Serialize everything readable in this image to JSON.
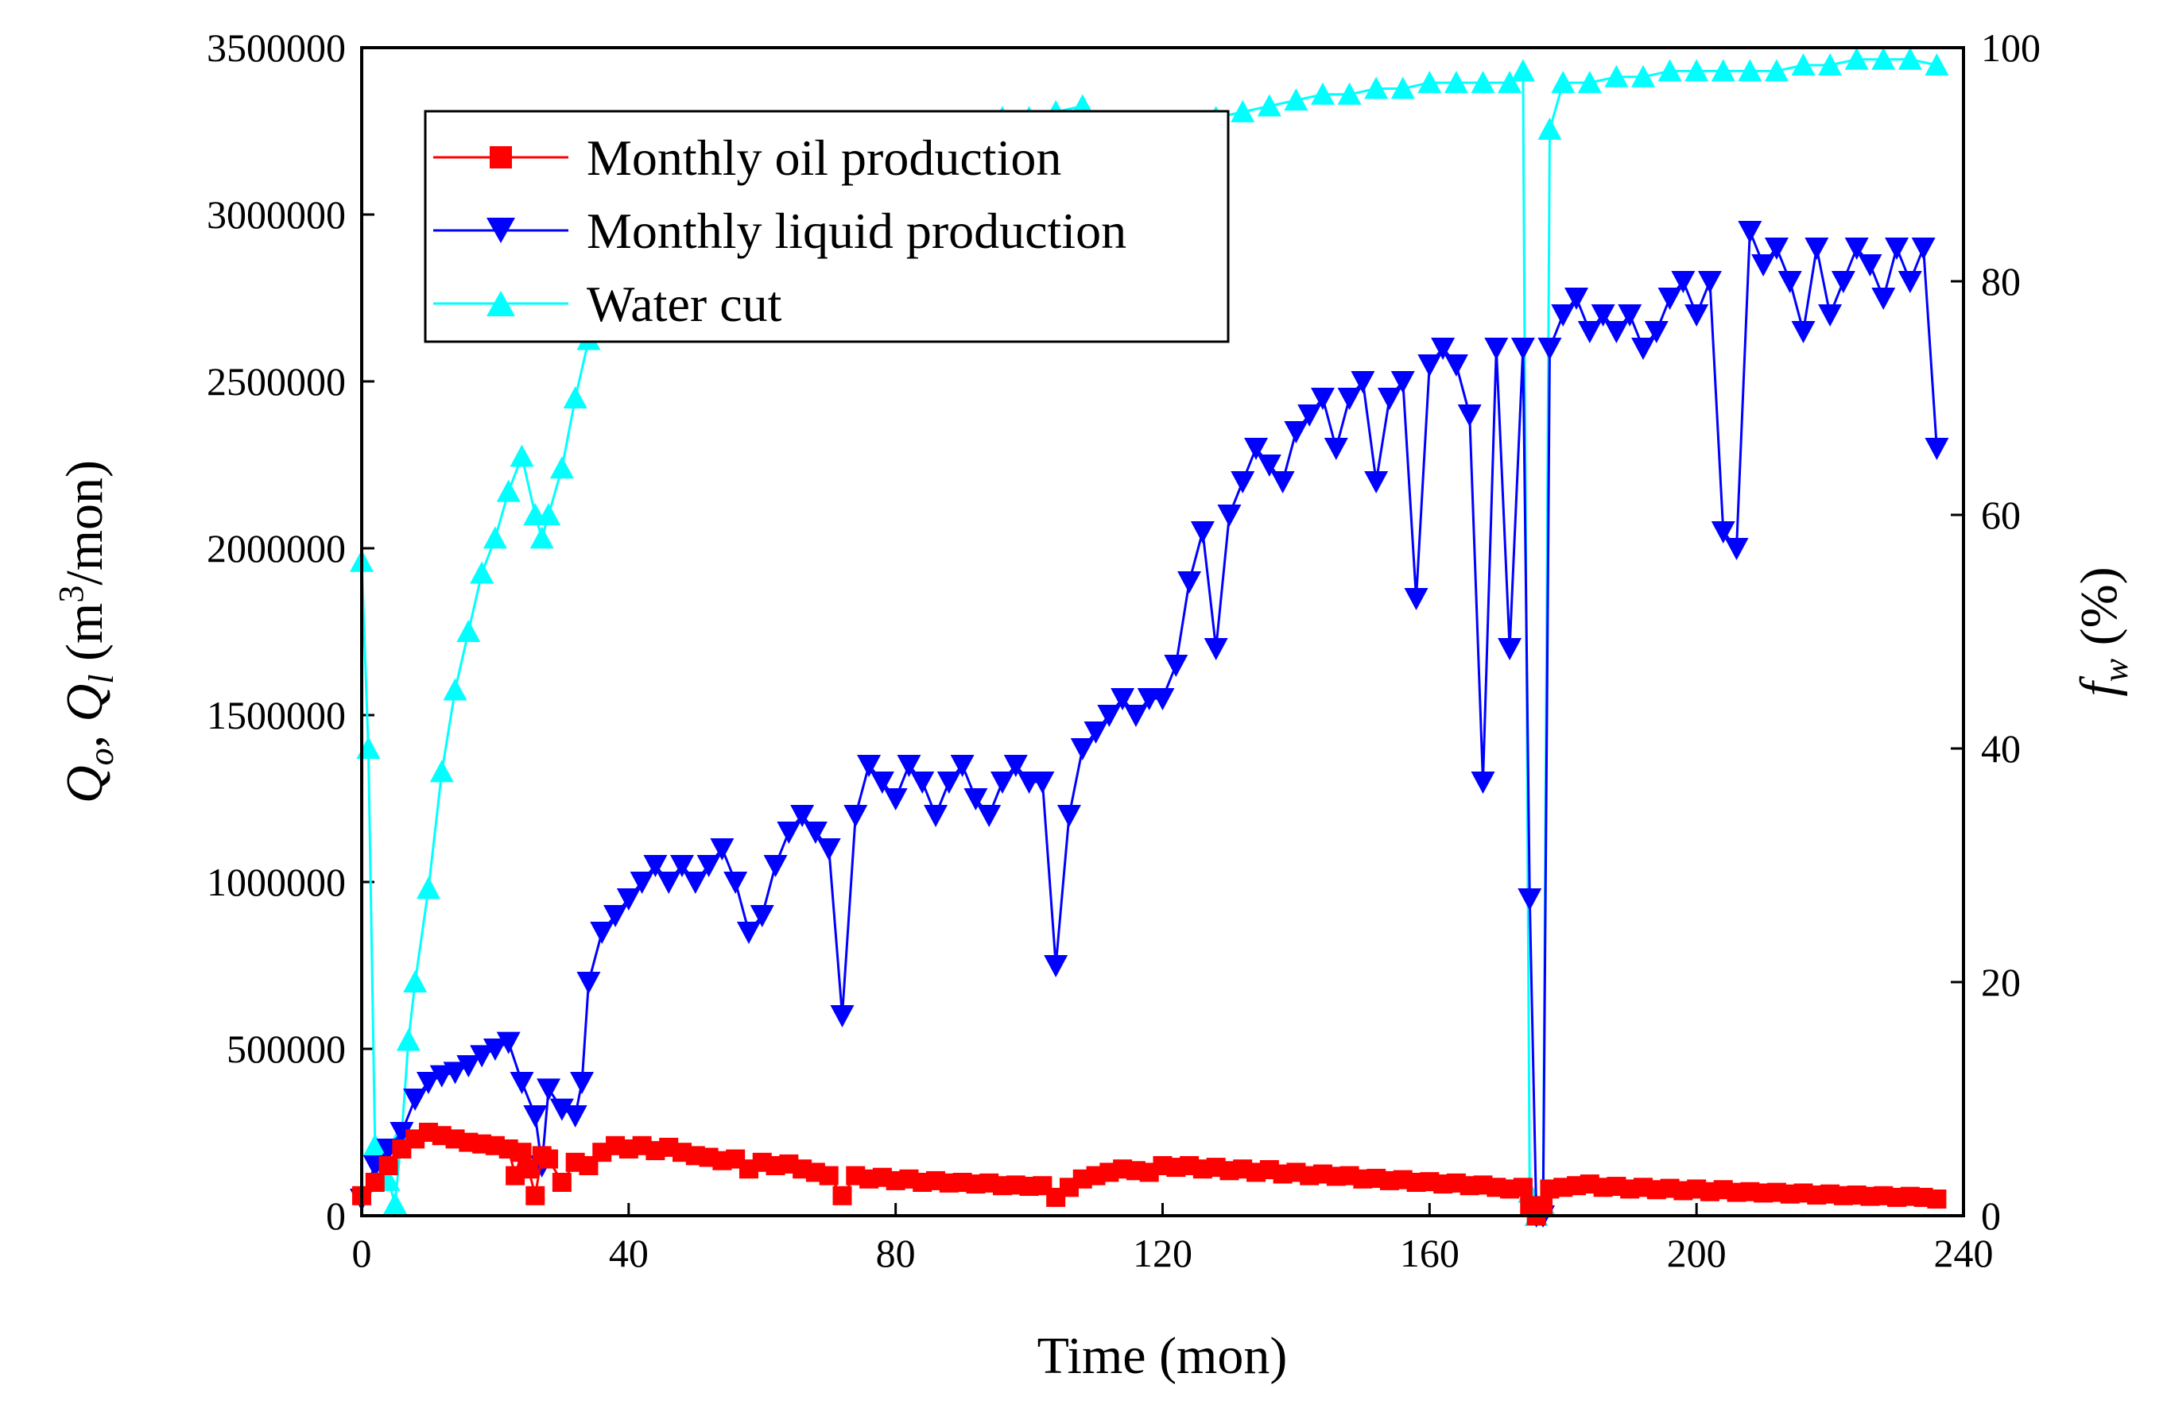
{
  "chart_data": {
    "type": "line",
    "xlabel": "Time (mon)",
    "ylabel_left_parts": [
      "Q",
      "o",
      ", ",
      "Q",
      "l",
      " (m",
      "3",
      "/mon)"
    ],
    "ylabel_right_parts": [
      "f",
      "w",
      " (%)"
    ],
    "xlim": [
      0,
      240
    ],
    "ylim_left": [
      0,
      3500000
    ],
    "ylim_right": [
      0,
      100
    ],
    "x_ticks": [
      "0",
      "40",
      "80",
      "120",
      "160",
      "200",
      "240"
    ],
    "y_left_ticks": [
      "0",
      "500000",
      "1000000",
      "1500000",
      "2000000",
      "2500000",
      "3000000",
      "3500000"
    ],
    "y_right_ticks": [
      "0",
      "20",
      "40",
      "60",
      "80",
      "100"
    ],
    "legend_position": "top-left",
    "colors": {
      "oil": "#ff0000",
      "liquid": "#0000ff",
      "water": "#00ffff"
    },
    "series": [
      {
        "name": "Monthly oil production",
        "axis": "left",
        "marker": "square",
        "color": "#ff0000",
        "x": [
          0,
          2,
          4,
          6,
          8,
          10,
          12,
          14,
          16,
          18,
          20,
          22,
          23,
          24,
          25,
          26,
          27,
          28,
          30,
          32,
          34,
          36,
          38,
          40,
          42,
          44,
          46,
          48,
          50,
          52,
          54,
          56,
          58,
          60,
          62,
          64,
          66,
          68,
          70,
          72,
          74,
          76,
          78,
          80,
          82,
          84,
          86,
          88,
          90,
          92,
          94,
          96,
          98,
          100,
          102,
          104,
          106,
          108,
          110,
          112,
          114,
          116,
          118,
          120,
          122,
          124,
          126,
          128,
          130,
          132,
          134,
          136,
          138,
          140,
          142,
          144,
          146,
          148,
          150,
          152,
          154,
          156,
          158,
          160,
          162,
          164,
          166,
          168,
          170,
          172,
          174,
          175,
          176,
          177,
          178,
          180,
          182,
          184,
          186,
          188,
          190,
          192,
          194,
          196,
          198,
          200,
          202,
          204,
          206,
          208,
          210,
          212,
          214,
          216,
          218,
          220,
          222,
          224,
          226,
          228,
          230,
          232,
          234,
          236
        ],
        "values": [
          60000,
          100000,
          150000,
          200000,
          230000,
          250000,
          240000,
          230000,
          220000,
          215000,
          210000,
          200000,
          120000,
          190000,
          140000,
          60000,
          180000,
          170000,
          100000,
          160000,
          150000,
          190000,
          210000,
          200000,
          210000,
          195000,
          205000,
          190000,
          180000,
          175000,
          165000,
          170000,
          140000,
          160000,
          150000,
          155000,
          140000,
          130000,
          120000,
          60000,
          120000,
          110000,
          115000,
          105000,
          110000,
          100000,
          105000,
          98000,
          100000,
          95000,
          98000,
          90000,
          92000,
          88000,
          90000,
          55000,
          85000,
          110000,
          120000,
          130000,
          140000,
          135000,
          130000,
          150000,
          145000,
          150000,
          140000,
          145000,
          135000,
          140000,
          130000,
          138000,
          125000,
          130000,
          120000,
          125000,
          118000,
          120000,
          110000,
          112000,
          105000,
          108000,
          100000,
          102000,
          95000,
          98000,
          90000,
          92000,
          85000,
          80000,
          85000,
          30000,
          0,
          30000,
          80000,
          85000,
          90000,
          95000,
          85000,
          88000,
          80000,
          85000,
          78000,
          82000,
          75000,
          80000,
          72000,
          78000,
          70000,
          72000,
          68000,
          70000,
          65000,
          68000,
          62000,
          65000,
          60000,
          62000,
          58000,
          60000,
          55000,
          58000,
          55000,
          50000
        ]
      },
      {
        "name": "Monthly liquid production",
        "axis": "left",
        "marker": "triangle-down",
        "color": "#0000ff",
        "x": [
          0,
          2,
          4,
          6,
          8,
          10,
          12,
          14,
          16,
          18,
          20,
          22,
          24,
          26,
          27,
          28,
          30,
          32,
          33,
          34,
          36,
          38,
          40,
          42,
          44,
          46,
          48,
          50,
          52,
          54,
          56,
          58,
          60,
          62,
          64,
          66,
          68,
          70,
          72,
          74,
          76,
          78,
          80,
          82,
          84,
          86,
          88,
          90,
          92,
          94,
          96,
          98,
          100,
          102,
          104,
          106,
          108,
          110,
          112,
          114,
          116,
          118,
          120,
          122,
          124,
          126,
          128,
          130,
          132,
          134,
          136,
          138,
          140,
          142,
          144,
          146,
          148,
          150,
          152,
          154,
          156,
          158,
          160,
          162,
          164,
          166,
          168,
          170,
          172,
          174,
          175,
          176,
          177,
          178,
          180,
          182,
          184,
          186,
          188,
          190,
          192,
          194,
          196,
          198,
          200,
          202,
          204,
          206,
          208,
          210,
          212,
          214,
          216,
          218,
          220,
          222,
          224,
          226,
          228,
          230,
          232,
          234,
          236
        ],
        "values": [
          50000,
          150000,
          200000,
          250000,
          350000,
          400000,
          420000,
          430000,
          450000,
          480000,
          500000,
          520000,
          400000,
          300000,
          150000,
          380000,
          320000,
          300000,
          400000,
          700000,
          850000,
          900000,
          950000,
          1000000,
          1050000,
          1000000,
          1050000,
          1000000,
          1050000,
          1100000,
          1000000,
          850000,
          900000,
          1050000,
          1150000,
          1200000,
          1150000,
          1100000,
          600000,
          1200000,
          1350000,
          1300000,
          1250000,
          1350000,
          1300000,
          1200000,
          1300000,
          1350000,
          1250000,
          1200000,
          1300000,
          1350000,
          1300000,
          1300000,
          750000,
          1200000,
          1400000,
          1450000,
          1500000,
          1550000,
          1500000,
          1550000,
          1550000,
          1650000,
          1900000,
          2050000,
          1700000,
          2100000,
          2200000,
          2300000,
          2250000,
          2200000,
          2350000,
          2400000,
          2450000,
          2300000,
          2450000,
          2500000,
          2200000,
          2450000,
          2500000,
          1850000,
          2550000,
          2600000,
          2550000,
          2400000,
          1300000,
          2600000,
          1700000,
          2600000,
          950000,
          0,
          0,
          2600000,
          2700000,
          2750000,
          2650000,
          2700000,
          2650000,
          2700000,
          2600000,
          2650000,
          2750000,
          2800000,
          2700000,
          2800000,
          2050000,
          2000000,
          2950000,
          2850000,
          2900000,
          2800000,
          2650000,
          2900000,
          2700000,
          2800000,
          2900000,
          2850000,
          2750000,
          2900000,
          2800000,
          2900000,
          2300000
        ]
      },
      {
        "name": "Water cut",
        "axis": "right",
        "marker": "triangle-up",
        "color": "#00ffff",
        "x": [
          0,
          1,
          2,
          3,
          4,
          5,
          6,
          7,
          8,
          10,
          12,
          14,
          16,
          18,
          20,
          22,
          24,
          26,
          27,
          28,
          30,
          32,
          34,
          36,
          38,
          40,
          44,
          48,
          52,
          56,
          60,
          64,
          68,
          72,
          76,
          80,
          84,
          88,
          92,
          96,
          100,
          104,
          108,
          112,
          116,
          120,
          124,
          128,
          132,
          136,
          140,
          144,
          148,
          152,
          156,
          160,
          164,
          168,
          172,
          174,
          175,
          176,
          177,
          178,
          180,
          184,
          188,
          192,
          196,
          200,
          204,
          208,
          212,
          216,
          220,
          224,
          228,
          232,
          236
        ],
        "values": [
          56,
          40,
          6,
          5,
          3,
          1,
          7,
          15,
          20,
          28,
          38,
          45,
          50,
          55,
          58,
          62,
          65,
          60,
          58,
          60,
          64,
          70,
          75,
          77,
          80,
          82,
          84,
          85,
          86,
          87,
          88,
          89,
          90,
          91,
          92,
          92,
          93,
          93,
          93.5,
          94,
          94,
          94.5,
          95,
          93,
          91,
          92,
          93,
          94,
          94.5,
          95,
          95.5,
          96,
          96,
          96.5,
          96.5,
          97,
          97,
          97,
          97,
          98,
          2,
          0,
          1,
          93,
          97,
          97,
          97.5,
          97.5,
          98,
          98,
          98,
          98,
          98,
          98.5,
          98.5,
          99,
          99,
          99,
          98.5
        ]
      }
    ]
  }
}
